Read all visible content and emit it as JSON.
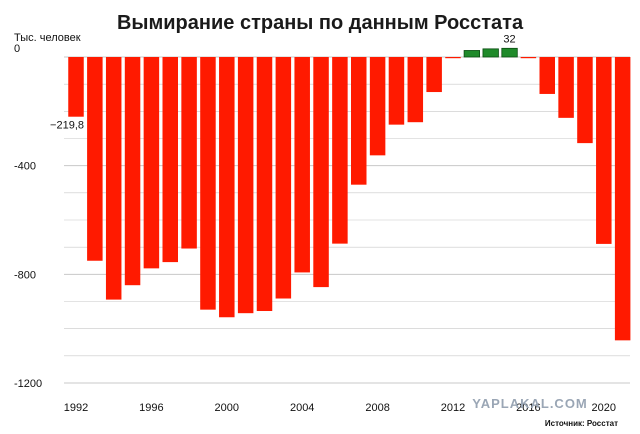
{
  "chart_data": {
    "type": "bar",
    "title": "Вымирание страны по данным Росстата",
    "ylabel": "Тыс. человек",
    "source": "Источник: Росстат",
    "watermark": "YAPLAKAL.COM",
    "ylim": [
      -1200,
      0
    ],
    "yticks": [
      {
        "value": 0,
        "label": "0"
      },
      {
        "value": -400,
        "label": "-400"
      },
      {
        "value": -800,
        "label": "-800"
      },
      {
        "value": -1200,
        "label": "-1200"
      }
    ],
    "x": [
      1992,
      1993,
      1994,
      1995,
      1996,
      1997,
      1998,
      1999,
      2000,
      2001,
      2002,
      2003,
      2004,
      2005,
      2006,
      2007,
      2008,
      2009,
      2010,
      2011,
      2012,
      2013,
      2014,
      2015,
      2016,
      2017,
      2018,
      2019,
      2020,
      2021
    ],
    "xticks": [
      {
        "value": 1992,
        "label": "1992"
      },
      {
        "value": 1996,
        "label": "1996"
      },
      {
        "value": 2000,
        "label": "2000"
      },
      {
        "value": 2004,
        "label": "2004"
      },
      {
        "value": 2008,
        "label": "2008"
      },
      {
        "value": 2012,
        "label": "2012"
      },
      {
        "value": 2016,
        "label": "2016"
      },
      {
        "value": 2020,
        "label": "2020"
      }
    ],
    "values": [
      -219.8,
      -750,
      -893,
      -840,
      -778,
      -755,
      -705,
      -930,
      -958,
      -943,
      -935,
      -889,
      -793,
      -847,
      -687,
      -470,
      -362,
      -249,
      -240,
      -129,
      -4,
      24,
      30,
      32,
      -2,
      -136,
      -224,
      -317,
      -688,
      -1043
    ],
    "colors": {
      "negative": "#ff1a00",
      "positive": "#1f8a2a",
      "grid": "#c8c8c8"
    },
    "annotations": [
      {
        "index": 0,
        "label": "−219,8"
      },
      {
        "index": 23,
        "label": "32"
      }
    ],
    "grid": true
  }
}
